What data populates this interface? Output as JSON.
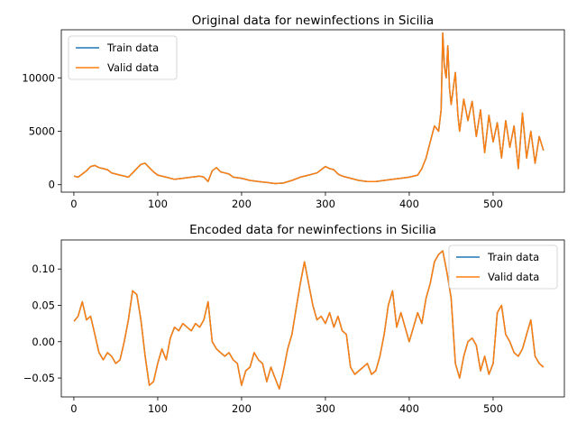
{
  "chart_data": [
    {
      "type": "line",
      "title": "Original data for newinfections in Sicilia",
      "xlim": [
        -15,
        585
      ],
      "ylim": [
        -700,
        14500
      ],
      "xticks": [
        0,
        100,
        200,
        300,
        400,
        500
      ],
      "yticks": [
        0,
        5000,
        10000
      ],
      "legend": "top-left",
      "series": [
        {
          "name": "Train data",
          "color": "#1f77b4",
          "x": [
            0,
            5,
            10,
            15,
            20,
            25,
            30,
            35,
            40,
            45,
            50,
            55,
            60,
            65,
            70,
            75,
            80,
            85,
            90,
            95,
            100,
            110,
            120,
            130,
            140,
            150,
            155,
            160,
            165,
            170,
            175,
            180,
            185,
            190,
            200,
            210,
            220,
            230,
            240,
            250,
            260,
            270,
            280,
            290,
            295,
            300,
            305,
            310,
            315,
            320,
            330,
            340,
            350,
            360,
            370,
            380,
            390,
            400,
            410,
            415,
            420,
            425,
            430,
            435,
            438,
            440,
            442,
            444,
            446,
            448,
            450,
            455,
            458,
            460,
            465,
            470,
            475,
            480,
            485,
            490,
            495,
            500,
            505,
            510,
            515,
            520,
            525,
            530,
            535,
            540,
            545,
            550,
            555,
            560
          ],
          "y": [
            800,
            700,
            1000,
            1300,
            1700,
            1800,
            1600,
            1500,
            1400,
            1100,
            1000,
            900,
            800,
            700,
            1100,
            1500,
            1900,
            2000,
            1600,
            1200,
            900,
            700,
            500,
            600,
            700,
            800,
            700,
            300,
            1300,
            1600,
            1200,
            1100,
            1000,
            700,
            600,
            400,
            300,
            200,
            100,
            150,
            400,
            700,
            900,
            1100,
            1400,
            1700,
            1500,
            1400,
            1000,
            800,
            600,
            400,
            300,
            300,
            400,
            500,
            600,
            700,
            900,
            1500,
            2500,
            4000,
            5500,
            5000,
            7000,
            14200,
            11000,
            10000,
            13000,
            9000,
            7500,
            10500,
            6500,
            5000,
            8000,
            6000,
            7800,
            4500,
            7000,
            3000,
            6500,
            4000,
            5800,
            2500,
            6000,
            3500,
            5500,
            1500,
            6700,
            2500,
            5000,
            2000,
            4500,
            3200
          ]
        },
        {
          "name": "Valid data",
          "color": "#ff7f0e",
          "x": [
            0,
            5,
            10,
            15,
            20,
            25,
            30,
            35,
            40,
            45,
            50,
            55,
            60,
            65,
            70,
            75,
            80,
            85,
            90,
            95,
            100,
            110,
            120,
            130,
            140,
            150,
            155,
            160,
            165,
            170,
            175,
            180,
            185,
            190,
            200,
            210,
            220,
            230,
            240,
            250,
            260,
            270,
            280,
            290,
            295,
            300,
            305,
            310,
            315,
            320,
            330,
            340,
            350,
            360,
            370,
            380,
            390,
            400,
            410,
            415,
            420,
            425,
            430,
            435,
            438,
            440,
            442,
            444,
            446,
            448,
            450,
            455,
            458,
            460,
            465,
            470,
            475,
            480,
            485,
            490,
            495,
            500,
            505,
            510,
            515,
            520,
            525,
            530,
            535,
            540,
            545,
            550,
            555,
            560
          ],
          "y": [
            800,
            700,
            1000,
            1300,
            1700,
            1800,
            1600,
            1500,
            1400,
            1100,
            1000,
            900,
            800,
            700,
            1100,
            1500,
            1900,
            2000,
            1600,
            1200,
            900,
            700,
            500,
            600,
            700,
            800,
            700,
            300,
            1300,
            1600,
            1200,
            1100,
            1000,
            700,
            600,
            400,
            300,
            200,
            100,
            150,
            400,
            700,
            900,
            1100,
            1400,
            1700,
            1500,
            1400,
            1000,
            800,
            600,
            400,
            300,
            300,
            400,
            500,
            600,
            700,
            900,
            1500,
            2500,
            4000,
            5500,
            5000,
            7000,
            14200,
            11000,
            10000,
            13000,
            9000,
            7500,
            10500,
            6500,
            5000,
            8000,
            6000,
            7800,
            4500,
            7000,
            3000,
            6500,
            4000,
            5800,
            2500,
            6000,
            3500,
            5500,
            1500,
            6700,
            2500,
            5000,
            2000,
            4500,
            3200
          ]
        }
      ]
    },
    {
      "type": "line",
      "title": "Encoded data for newinfections in Sicilia",
      "xlim": [
        -15,
        585
      ],
      "ylim": [
        -0.076,
        0.14
      ],
      "xticks": [
        0,
        100,
        200,
        300,
        400,
        500
      ],
      "yticks": [
        -0.05,
        0.0,
        0.05,
        0.1
      ],
      "ytick_labels": [
        "−0.05",
        "0.00",
        "0.05",
        "0.10"
      ],
      "legend": "top-right",
      "series": [
        {
          "name": "Train data",
          "color": "#1f77b4",
          "x": [
            0,
            5,
            10,
            15,
            20,
            25,
            30,
            35,
            40,
            45,
            50,
            55,
            60,
            65,
            70,
            75,
            80,
            85,
            90,
            95,
            100,
            105,
            110,
            115,
            120,
            125,
            130,
            135,
            140,
            145,
            150,
            155,
            160,
            165,
            170,
            175,
            180,
            185,
            190,
            195,
            200,
            205,
            210,
            215,
            220,
            225,
            230,
            235,
            240,
            245,
            250,
            255,
            260,
            265,
            270,
            275,
            280,
            285,
            290,
            295,
            300,
            305,
            310,
            315,
            320,
            325,
            330,
            335,
            340,
            345,
            350,
            355,
            360,
            365,
            370,
            375,
            380,
            385,
            390,
            395,
            400,
            405,
            410,
            415,
            420,
            425,
            430,
            435,
            440,
            445,
            450,
            455,
            460,
            465,
            470,
            475,
            480,
            485,
            490,
            495,
            500,
            505,
            510,
            515,
            520,
            525,
            530,
            535,
            540,
            545,
            550,
            555,
            560
          ],
          "y": [
            0.028,
            0.035,
            0.055,
            0.03,
            0.035,
            0.01,
            -0.015,
            -0.025,
            -0.015,
            -0.02,
            -0.03,
            -0.025,
            0.0,
            0.03,
            0.07,
            0.065,
            0.03,
            -0.02,
            -0.06,
            -0.055,
            -0.03,
            -0.01,
            -0.025,
            0.005,
            0.02,
            0.015,
            0.025,
            0.02,
            0.015,
            0.025,
            0.02,
            0.03,
            0.055,
            0.0,
            -0.01,
            -0.015,
            -0.02,
            -0.015,
            -0.025,
            -0.03,
            -0.06,
            -0.04,
            -0.035,
            -0.015,
            -0.025,
            -0.03,
            -0.055,
            -0.035,
            -0.05,
            -0.065,
            -0.04,
            -0.01,
            0.01,
            0.045,
            0.08,
            0.11,
            0.08,
            0.05,
            0.03,
            0.035,
            0.025,
            0.04,
            0.02,
            0.035,
            0.015,
            0.01,
            -0.035,
            -0.045,
            -0.04,
            -0.035,
            -0.03,
            -0.045,
            -0.04,
            -0.02,
            0.01,
            0.05,
            0.07,
            0.02,
            0.04,
            0.02,
            0.0,
            0.02,
            0.04,
            0.025,
            0.06,
            0.08,
            0.11,
            0.12,
            0.125,
            0.095,
            0.06,
            -0.03,
            -0.05,
            -0.02,
            0.0,
            0.005,
            -0.005,
            -0.04,
            -0.02,
            -0.045,
            -0.03,
            0.04,
            0.05,
            0.01,
            0.0,
            -0.015,
            -0.02,
            -0.01,
            0.01,
            0.03,
            -0.02,
            -0.03,
            -0.035
          ]
        },
        {
          "name": "Valid data",
          "color": "#ff7f0e",
          "x": [
            0,
            5,
            10,
            15,
            20,
            25,
            30,
            35,
            40,
            45,
            50,
            55,
            60,
            65,
            70,
            75,
            80,
            85,
            90,
            95,
            100,
            105,
            110,
            115,
            120,
            125,
            130,
            135,
            140,
            145,
            150,
            155,
            160,
            165,
            170,
            175,
            180,
            185,
            190,
            195,
            200,
            205,
            210,
            215,
            220,
            225,
            230,
            235,
            240,
            245,
            250,
            255,
            260,
            265,
            270,
            275,
            280,
            285,
            290,
            295,
            300,
            305,
            310,
            315,
            320,
            325,
            330,
            335,
            340,
            345,
            350,
            355,
            360,
            365,
            370,
            375,
            380,
            385,
            390,
            395,
            400,
            405,
            410,
            415,
            420,
            425,
            430,
            435,
            440,
            445,
            450,
            455,
            460,
            465,
            470,
            475,
            480,
            485,
            490,
            495,
            500,
            505,
            510,
            515,
            520,
            525,
            530,
            535,
            540,
            545,
            550,
            555,
            560
          ],
          "y": [
            0.028,
            0.035,
            0.055,
            0.03,
            0.035,
            0.01,
            -0.015,
            -0.025,
            -0.015,
            -0.02,
            -0.03,
            -0.025,
            0.0,
            0.03,
            0.07,
            0.065,
            0.03,
            -0.02,
            -0.06,
            -0.055,
            -0.03,
            -0.01,
            -0.025,
            0.005,
            0.02,
            0.015,
            0.025,
            0.02,
            0.015,
            0.025,
            0.02,
            0.03,
            0.055,
            0.0,
            -0.01,
            -0.015,
            -0.02,
            -0.015,
            -0.025,
            -0.03,
            -0.06,
            -0.04,
            -0.035,
            -0.015,
            -0.025,
            -0.03,
            -0.055,
            -0.035,
            -0.05,
            -0.065,
            -0.04,
            -0.01,
            0.01,
            0.045,
            0.08,
            0.11,
            0.08,
            0.05,
            0.03,
            0.035,
            0.025,
            0.04,
            0.02,
            0.035,
            0.015,
            0.01,
            -0.035,
            -0.045,
            -0.04,
            -0.035,
            -0.03,
            -0.045,
            -0.04,
            -0.02,
            0.01,
            0.05,
            0.07,
            0.02,
            0.04,
            0.02,
            0.0,
            0.02,
            0.04,
            0.025,
            0.06,
            0.08,
            0.11,
            0.12,
            0.125,
            0.095,
            0.06,
            -0.03,
            -0.05,
            -0.02,
            0.0,
            0.005,
            -0.005,
            -0.04,
            -0.02,
            -0.045,
            -0.03,
            0.04,
            0.05,
            0.01,
            0.0,
            -0.015,
            -0.02,
            -0.01,
            0.01,
            0.03,
            -0.02,
            -0.03,
            -0.035
          ]
        }
      ]
    }
  ]
}
